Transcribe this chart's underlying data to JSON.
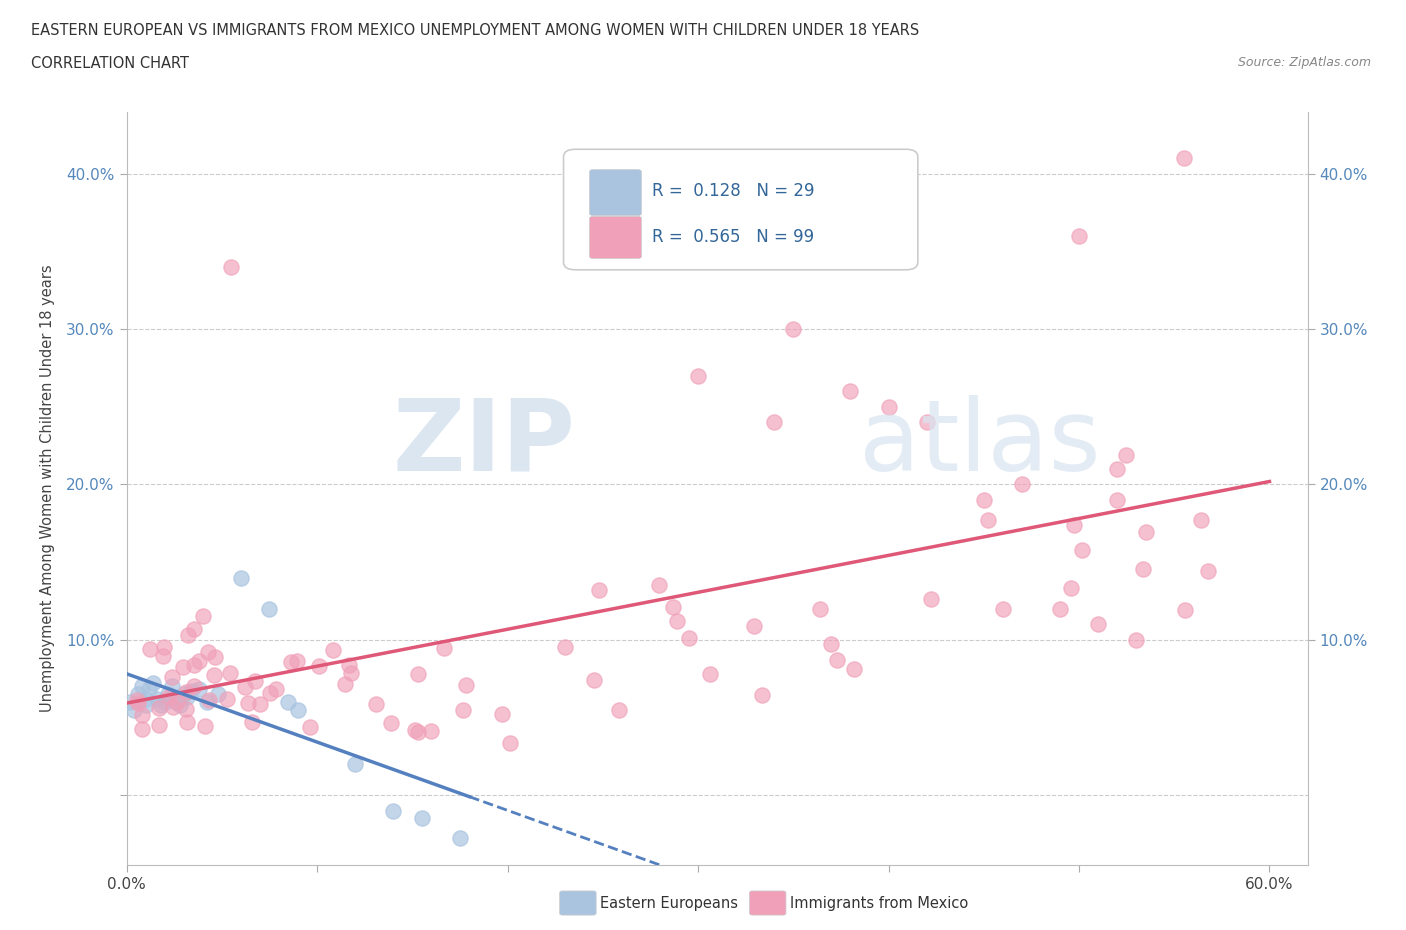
{
  "title_line1": "EASTERN EUROPEAN VS IMMIGRANTS FROM MEXICO UNEMPLOYMENT AMONG WOMEN WITH CHILDREN UNDER 18 YEARS",
  "title_line2": "CORRELATION CHART",
  "source": "Source: ZipAtlas.com",
  "ylabel": "Unemployment Among Women with Children Under 18 years",
  "xlim": [
    0.0,
    0.62
  ],
  "ylim": [
    -0.045,
    0.44
  ],
  "blue_color": "#aac4e0",
  "pink_color": "#f0a0b8",
  "blue_line_color": "#5580c0",
  "pink_line_color": "#e05878",
  "R_blue": 0.128,
  "N_blue": 29,
  "R_pink": 0.565,
  "N_pink": 99,
  "legend_label_blue": "Eastern Europeans",
  "legend_label_pink": "Immigrants from Mexico",
  "watermark_zip": "ZIP",
  "watermark_atlas": "atlas",
  "grid_color": "#cccccc",
  "ytick_vals": [
    0.0,
    0.1,
    0.2,
    0.3,
    0.4
  ],
  "xtick_vals": [
    0.0,
    0.1,
    0.2,
    0.3,
    0.4,
    0.5,
    0.6
  ]
}
